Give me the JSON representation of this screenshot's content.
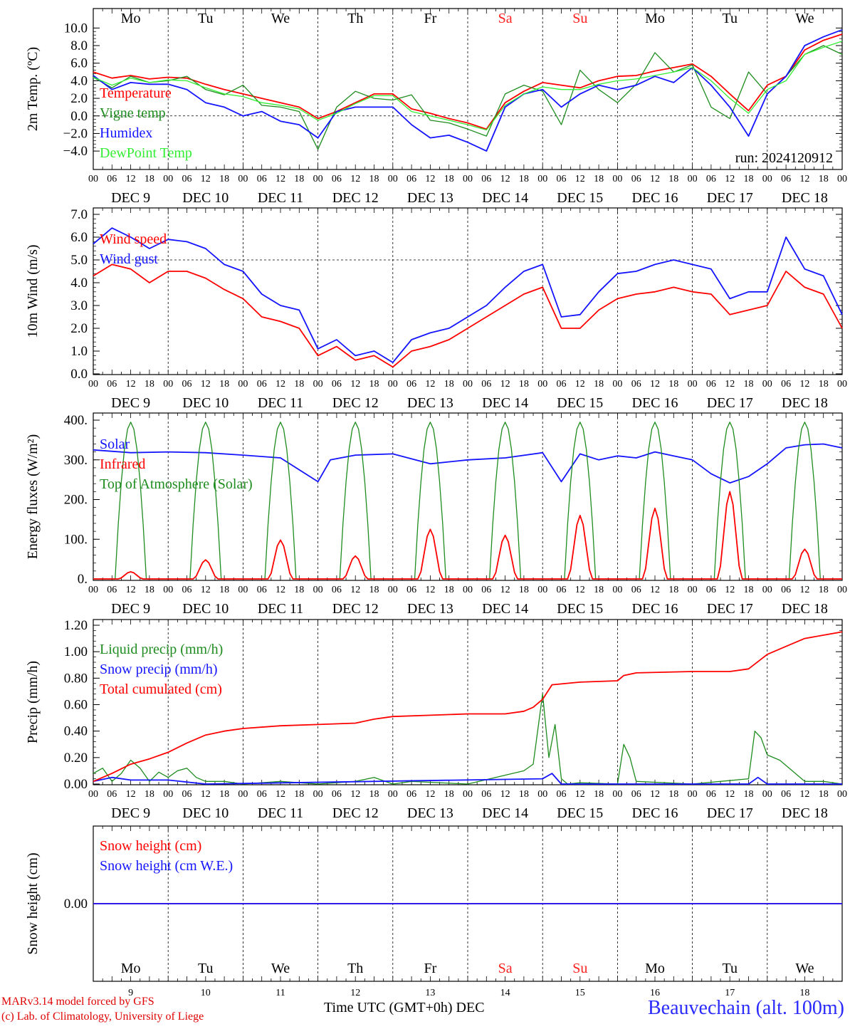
{
  "run_label": "run: 2024120912",
  "days": {
    "weekdays": [
      "Mo",
      "Tu",
      "We",
      "Th",
      "Fr",
      "Sa",
      "Su",
      "Mo",
      "Tu",
      "We"
    ],
    "weekend_flags": [
      false,
      false,
      false,
      false,
      false,
      true,
      true,
      false,
      false,
      false
    ],
    "dates": [
      "DEC  9",
      "DEC 10",
      "DEC 11",
      "DEC 12",
      "DEC 13",
      "DEC 14",
      "DEC 15",
      "DEC 16",
      "DEC 17",
      "DEC 18"
    ],
    "day_numbers": [
      "9",
      "10",
      "11",
      "12",
      "13",
      "14",
      "15",
      "16",
      "17",
      "18"
    ],
    "hour_ticks": [
      "00",
      "06",
      "12",
      "18"
    ],
    "final_hour": "00"
  },
  "colors": {
    "red": "#ff0000",
    "green": "#1e8c1e",
    "blue": "#1414ff",
    "lightgreen": "#33ee33",
    "weekend": "#ff2020"
  },
  "footer": {
    "credit_line1": "MARv3.14 model forced by GFS",
    "credit_line2": "(c) Lab. of Climatology, University of Liege",
    "time_axis": "Time UTC (GMT+0h) DEC",
    "station": "Beauvechain (alt. 100m)"
  },
  "chart_data": [
    {
      "type": "line",
      "ylabel": "2m Temp. (ºC)",
      "ylim": [
        -4.8,
        11.0
      ],
      "yticks": [
        "10.0",
        "8.0",
        "6.0",
        "4.0",
        "2.0",
        "0.0",
        "−2.0",
        "−4.0"
      ],
      "ytick_values": [
        10,
        8,
        6,
        4,
        2,
        0,
        -2,
        -4
      ],
      "x_hours": [
        0,
        6,
        12,
        18,
        24,
        30,
        36,
        42,
        48,
        54,
        60,
        66,
        72,
        78,
        84,
        90,
        96,
        102,
        108,
        114,
        120,
        126,
        132,
        138,
        144,
        150,
        156,
        162,
        168,
        174,
        180,
        186,
        192,
        198,
        204,
        210,
        216,
        222,
        228,
        234,
        240
      ],
      "reference_line": 0,
      "legend": [
        "Temperature",
        "Vigne temp",
        "Humidex",
        "DewPoint Temp"
      ],
      "series": [
        {
          "name": "Temperature",
          "color": "red",
          "values": [
            5.0,
            4.3,
            4.6,
            4.2,
            4.4,
            4.3,
            3.6,
            3.0,
            2.5,
            2.0,
            1.5,
            1.0,
            -0.3,
            0.5,
            1.5,
            2.5,
            2.5,
            0.8,
            0.3,
            -0.3,
            -0.8,
            -1.5,
            1.5,
            2.8,
            3.8,
            3.5,
            3.2,
            4.0,
            4.5,
            4.6,
            5.1,
            5.5,
            5.9,
            4.5,
            2.5,
            0.6,
            3.5,
            4.5,
            7.5,
            8.6,
            9.3
          ]
        },
        {
          "name": "Vigne temp",
          "color": "green",
          "values": [
            4.4,
            3.2,
            4.5,
            3.8,
            4.0,
            4.5,
            3.0,
            2.4,
            3.5,
            1.2,
            1.0,
            0.5,
            -3.8,
            1.0,
            2.8,
            2.0,
            1.8,
            2.4,
            -0.5,
            -0.8,
            -1.5,
            -2.3,
            2.5,
            3.5,
            2.8,
            -1.0,
            5.2,
            3.0,
            1.5,
            3.6,
            7.2,
            5.0,
            5.8,
            1.0,
            -0.3,
            5.0,
            2.5,
            4.5,
            7.0,
            8.0,
            7.0
          ]
        },
        {
          "name": "Humidex",
          "color": "blue",
          "values": [
            4.6,
            3.0,
            3.8,
            3.6,
            3.6,
            3.0,
            1.5,
            1.0,
            0.0,
            0.5,
            -0.6,
            -1.0,
            -2.5,
            0.5,
            1.0,
            1.0,
            1.0,
            -1.0,
            -2.5,
            -2.2,
            -3.0,
            -4.0,
            1.0,
            2.5,
            3.0,
            1.0,
            2.5,
            3.5,
            3.0,
            3.5,
            4.5,
            3.8,
            5.5,
            3.5,
            1.0,
            -2.3,
            2.5,
            4.5,
            8.0,
            9.0,
            9.8
          ]
        },
        {
          "name": "DewPoint Temp",
          "color": "lightgreen",
          "values": [
            4.4,
            3.5,
            4.3,
            3.8,
            4.1,
            4.0,
            3.2,
            2.5,
            2.2,
            1.5,
            1.2,
            0.8,
            -0.5,
            0.3,
            1.4,
            2.3,
            2.3,
            0.5,
            0.0,
            -0.5,
            -1.0,
            -1.6,
            1.2,
            2.5,
            3.3,
            3.0,
            3.0,
            3.6,
            4.0,
            4.2,
            4.6,
            5.0,
            5.5,
            4.0,
            2.0,
            0.3,
            3.0,
            4.0,
            7.0,
            7.8,
            8.5
          ]
        }
      ]
    },
    {
      "type": "line",
      "ylabel": "10m Wind (m/s)",
      "ylim": [
        0,
        7.0
      ],
      "yticks": [
        "7.0",
        "6.0",
        "5.0",
        "4.0",
        "3.0",
        "2.0",
        "1.0",
        "0.0"
      ],
      "ytick_values": [
        7,
        6,
        5,
        4,
        3,
        2,
        1,
        0
      ],
      "x_hours": [
        0,
        6,
        12,
        18,
        24,
        30,
        36,
        42,
        48,
        54,
        60,
        66,
        72,
        78,
        84,
        90,
        96,
        102,
        108,
        114,
        120,
        126,
        132,
        138,
        144,
        150,
        156,
        162,
        168,
        174,
        180,
        186,
        192,
        198,
        204,
        210,
        216,
        222,
        228,
        234,
        240
      ],
      "reference_line": 5,
      "legend": [
        "Wind speed",
        "Wind gust"
      ],
      "series": [
        {
          "name": "Wind speed",
          "color": "red",
          "values": [
            4.3,
            4.8,
            4.6,
            4.0,
            4.5,
            4.5,
            4.2,
            3.7,
            3.3,
            2.5,
            2.3,
            2.0,
            0.8,
            1.2,
            0.6,
            0.8,
            0.3,
            1.0,
            1.2,
            1.5,
            2.0,
            2.5,
            3.0,
            3.5,
            3.8,
            2.0,
            2.0,
            2.8,
            3.3,
            3.5,
            3.6,
            3.8,
            3.6,
            3.5,
            2.6,
            2.8,
            3.0,
            4.5,
            3.8,
            3.5,
            2.0
          ]
        },
        {
          "name": "Wind gust",
          "color": "blue",
          "values": [
            5.7,
            6.4,
            6.0,
            5.5,
            5.9,
            5.8,
            5.5,
            4.8,
            4.5,
            3.5,
            3.0,
            2.8,
            1.1,
            1.5,
            0.8,
            1.0,
            0.5,
            1.5,
            1.8,
            2.0,
            2.5,
            3.0,
            3.8,
            4.5,
            4.8,
            2.5,
            2.6,
            3.6,
            4.4,
            4.5,
            4.8,
            5.0,
            4.8,
            4.6,
            3.3,
            3.6,
            3.6,
            6.0,
            4.6,
            4.3,
            2.6
          ]
        }
      ]
    },
    {
      "type": "line",
      "ylabel": "Energy fluxes (W/m²)",
      "ylim": [
        0,
        400
      ],
      "yticks": [
        "400.",
        "300.",
        "200.",
        "100.",
        "0."
      ],
      "ytick_values": [
        400,
        300,
        200,
        100,
        0
      ],
      "legend": [
        "Solar",
        "Infrared",
        "Top of Atmosphere (Solar)"
      ],
      "toa_peak": 395,
      "solar_daily_peaks": [
        18,
        48,
        98,
        58,
        125,
        110,
        160,
        178,
        220,
        75
      ],
      "series": [
        {
          "name": "Infrared",
          "color": "blue",
          "x_hours": [
            0,
            12,
            24,
            36,
            48,
            60,
            72,
            76,
            84,
            96,
            108,
            120,
            132,
            144,
            150,
            156,
            162,
            168,
            174,
            180,
            186,
            192,
            198,
            204,
            210,
            216,
            222,
            228,
            234,
            240
          ],
          "values": [
            325,
            318,
            320,
            318,
            312,
            305,
            245,
            300,
            312,
            315,
            290,
            300,
            305,
            318,
            245,
            315,
            300,
            310,
            305,
            320,
            310,
            300,
            265,
            242,
            258,
            290,
            330,
            338,
            340,
            330
          ]
        },
        {
          "name": "Solar",
          "color": "red"
        },
        {
          "name": "Top of Atmosphere (Solar)",
          "color": "green"
        }
      ]
    },
    {
      "type": "line",
      "ylabel": "Precip (mm/h)",
      "ylim": [
        0,
        1.2
      ],
      "yticks": [
        "1.20",
        "1.00",
        "0.80",
        "0.60",
        "0.40",
        "0.20",
        "0.00"
      ],
      "ytick_values": [
        1.2,
        1.0,
        0.8,
        0.6,
        0.4,
        0.2,
        0.0
      ],
      "legend": [
        "Liquid precip (mm/h)",
        "Snow precip (mm/h)",
        "Total cumulated (cm)"
      ],
      "series": [
        {
          "name": "Liquid precip (mm/h)",
          "color": "green",
          "x_hours": [
            0,
            3,
            6,
            9,
            12,
            15,
            18,
            21,
            24,
            27,
            30,
            33,
            36,
            42,
            48,
            60,
            72,
            84,
            90,
            96,
            102,
            120,
            138,
            141,
            144,
            146,
            148,
            150,
            152,
            156,
            168,
            170,
            172,
            174,
            192,
            210,
            212,
            214,
            216,
            220,
            224,
            228,
            234,
            240
          ],
          "values": [
            0.08,
            0.12,
            0.02,
            0.08,
            0.18,
            0.12,
            0.02,
            0.09,
            0.05,
            0.1,
            0.12,
            0.05,
            0.02,
            0.02,
            0.0,
            0.02,
            0.0,
            0.02,
            0.05,
            0.0,
            0.02,
            0.0,
            0.1,
            0.15,
            0.68,
            0.2,
            0.45,
            0.04,
            0.0,
            0.01,
            0.0,
            0.3,
            0.2,
            0.02,
            0.0,
            0.04,
            0.4,
            0.35,
            0.22,
            0.18,
            0.1,
            0.02,
            0.02,
            0.0
          ]
        },
        {
          "name": "Snow precip (mm/h)",
          "color": "blue",
          "x_hours": [
            0,
            6,
            12,
            24,
            36,
            144,
            147,
            150,
            210,
            213,
            216,
            240
          ],
          "values": [
            0.02,
            0.05,
            0.03,
            0.03,
            0.0,
            0.04,
            0.08,
            0.0,
            0.0,
            0.05,
            0.0,
            0.0
          ]
        },
        {
          "name": "Total cumulated (cm)",
          "color": "red",
          "x_hours": [
            0,
            6,
            12,
            18,
            24,
            30,
            36,
            42,
            48,
            60,
            72,
            84,
            90,
            96,
            108,
            120,
            132,
            138,
            141,
            144,
            147,
            156,
            168,
            170,
            174,
            192,
            204,
            210,
            216,
            222,
            228,
            240
          ],
          "values": [
            0.02,
            0.08,
            0.15,
            0.19,
            0.24,
            0.31,
            0.37,
            0.4,
            0.42,
            0.44,
            0.45,
            0.46,
            0.49,
            0.51,
            0.52,
            0.53,
            0.53,
            0.55,
            0.58,
            0.64,
            0.75,
            0.77,
            0.78,
            0.82,
            0.84,
            0.85,
            0.85,
            0.87,
            0.98,
            1.04,
            1.1,
            1.15
          ]
        }
      ]
    },
    {
      "type": "line",
      "ylabel": "Snow height (cm)",
      "ylim": [
        -1,
        1
      ],
      "yticks": [
        "0.00"
      ],
      "ytick_values": [
        0
      ],
      "legend": [
        "Snow height (cm)",
        "Snow height (cm W.E.)"
      ],
      "series": [
        {
          "name": "Snow height (cm)",
          "color": "red",
          "x_hours": [
            0,
            240
          ],
          "values": [
            0,
            0
          ]
        },
        {
          "name": "Snow height (cm W.E.)",
          "color": "blue",
          "x_hours": [
            0,
            240
          ],
          "values": [
            0,
            0
          ]
        }
      ]
    }
  ]
}
